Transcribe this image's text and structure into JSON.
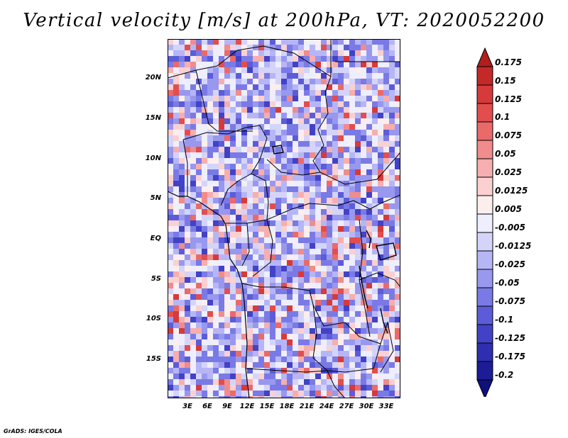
{
  "title": "Vertical velocity [m/s] at 200hPa, VT: 2020052200",
  "variable": "Vertical velocity",
  "units": "m/s",
  "level": "200hPa",
  "valid_time": "2020052200",
  "map": {
    "region": "Central Africa",
    "lat_ticks": [
      "20N",
      "15N",
      "10N",
      "5N",
      "EQ",
      "5S",
      "10S",
      "15S"
    ],
    "lon_ticks": [
      "3E",
      "6E",
      "9E",
      "12E",
      "15E",
      "18E",
      "21E",
      "24E",
      "27E",
      "30E",
      "33E"
    ]
  },
  "colorbar": {
    "levels": [
      "0.175",
      "0.15",
      "0.125",
      "0.1",
      "0.075",
      "0.05",
      "0.025",
      "0.0125",
      "0.005",
      "-0.005",
      "-0.0125",
      "-0.025",
      "-0.05",
      "-0.075",
      "-0.1",
      "-0.125",
      "-0.175",
      "-0.2"
    ],
    "colors": [
      "#b01e1e",
      "#c42828",
      "#d63a3a",
      "#e24e4e",
      "#ea6a6a",
      "#f08c8c",
      "#f6aeae",
      "#fad0d0",
      "#fdeeee",
      "#eeeefd",
      "#d4d4fb",
      "#b6b6f6",
      "#9898ef",
      "#7a7ae6",
      "#5c5cd8",
      "#4242c6",
      "#2e2eb0",
      "#1c1c96",
      "#10107c"
    ]
  },
  "credit": "GrADS: IGES/COLA"
}
